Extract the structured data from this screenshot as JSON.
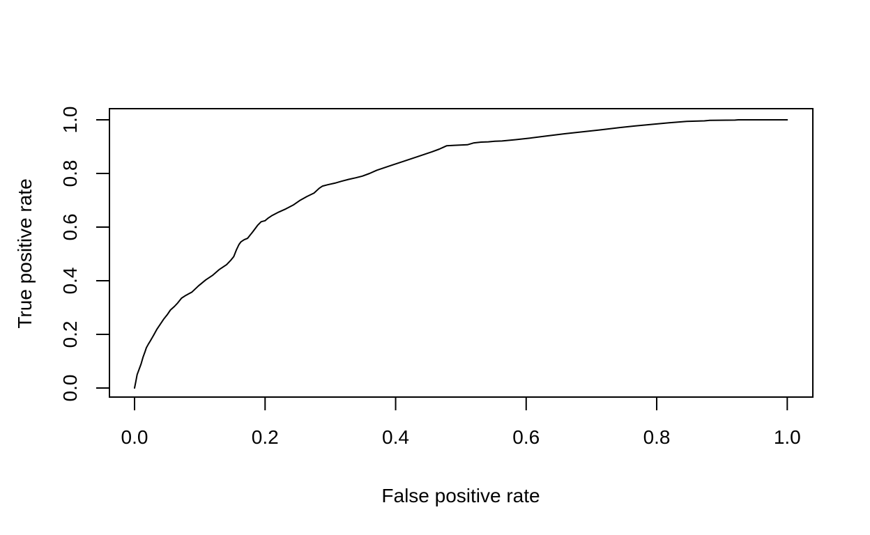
{
  "figure": {
    "background_color": "#ffffff",
    "foreground_color": "#000000"
  },
  "chart_data": {
    "type": "line",
    "title": "",
    "xlabel": "False positive rate",
    "ylabel": "True positive rate",
    "x_ticks": {
      "values": [
        0.0,
        0.2,
        0.4,
        0.6,
        0.8,
        1.0
      ],
      "labels": [
        "0.0",
        "0.2",
        "0.4",
        "0.6",
        "0.8",
        "1.0"
      ]
    },
    "y_ticks": {
      "values": [
        0.0,
        0.2,
        0.4,
        0.6,
        0.8,
        1.0
      ],
      "labels": [
        "0.0",
        "0.2",
        "0.4",
        "0.6",
        "0.8",
        "1.0"
      ]
    },
    "xlim": [
      -0.04,
      1.04
    ],
    "ylim": [
      -0.04,
      1.04
    ],
    "grid": false,
    "legend_position": "none",
    "line_color": "#000000",
    "series": [
      {
        "points": [
          [
            0.0,
            0.0
          ],
          [
            0.002,
            0.025
          ],
          [
            0.004,
            0.05
          ],
          [
            0.007,
            0.07
          ],
          [
            0.01,
            0.09
          ],
          [
            0.013,
            0.115
          ],
          [
            0.016,
            0.135
          ],
          [
            0.018,
            0.15
          ],
          [
            0.021,
            0.163
          ],
          [
            0.024,
            0.175
          ],
          [
            0.029,
            0.196
          ],
          [
            0.034,
            0.218
          ],
          [
            0.04,
            0.24
          ],
          [
            0.045,
            0.258
          ],
          [
            0.05,
            0.273
          ],
          [
            0.055,
            0.291
          ],
          [
            0.061,
            0.304
          ],
          [
            0.066,
            0.317
          ],
          [
            0.072,
            0.335
          ],
          [
            0.077,
            0.343
          ],
          [
            0.082,
            0.35
          ],
          [
            0.088,
            0.358
          ],
          [
            0.098,
            0.381
          ],
          [
            0.109,
            0.403
          ],
          [
            0.12,
            0.421
          ],
          [
            0.13,
            0.442
          ],
          [
            0.141,
            0.46
          ],
          [
            0.147,
            0.475
          ],
          [
            0.152,
            0.49
          ],
          [
            0.156,
            0.515
          ],
          [
            0.16,
            0.535
          ],
          [
            0.163,
            0.545
          ],
          [
            0.168,
            0.553
          ],
          [
            0.173,
            0.558
          ],
          [
            0.181,
            0.582
          ],
          [
            0.189,
            0.608
          ],
          [
            0.194,
            0.62
          ],
          [
            0.2,
            0.624
          ],
          [
            0.205,
            0.634
          ],
          [
            0.21,
            0.642
          ],
          [
            0.221,
            0.656
          ],
          [
            0.232,
            0.668
          ],
          [
            0.243,
            0.682
          ],
          [
            0.253,
            0.699
          ],
          [
            0.264,
            0.714
          ],
          [
            0.275,
            0.727
          ],
          [
            0.283,
            0.745
          ],
          [
            0.288,
            0.753
          ],
          [
            0.296,
            0.758
          ],
          [
            0.307,
            0.764
          ],
          [
            0.317,
            0.771
          ],
          [
            0.328,
            0.778
          ],
          [
            0.339,
            0.784
          ],
          [
            0.349,
            0.79
          ],
          [
            0.36,
            0.8
          ],
          [
            0.371,
            0.812
          ],
          [
            0.392,
            0.829
          ],
          [
            0.413,
            0.846
          ],
          [
            0.435,
            0.864
          ],
          [
            0.456,
            0.881
          ],
          [
            0.467,
            0.891
          ],
          [
            0.478,
            0.903
          ],
          [
            0.49,
            0.905
          ],
          [
            0.51,
            0.907
          ],
          [
            0.52,
            0.914
          ],
          [
            0.531,
            0.917
          ],
          [
            0.542,
            0.918
          ],
          [
            0.552,
            0.92
          ],
          [
            0.563,
            0.921
          ],
          [
            0.584,
            0.926
          ],
          [
            0.606,
            0.932
          ],
          [
            0.632,
            0.94
          ],
          [
            0.659,
            0.948
          ],
          [
            0.686,
            0.955
          ],
          [
            0.712,
            0.962
          ],
          [
            0.739,
            0.97
          ],
          [
            0.766,
            0.977
          ],
          [
            0.793,
            0.983
          ],
          [
            0.819,
            0.989
          ],
          [
            0.846,
            0.994
          ],
          [
            0.873,
            0.996
          ],
          [
            0.881,
            0.998
          ],
          [
            0.92,
            0.999
          ],
          [
            0.925,
            1.0
          ],
          [
            1.0,
            1.0
          ]
        ]
      }
    ]
  }
}
